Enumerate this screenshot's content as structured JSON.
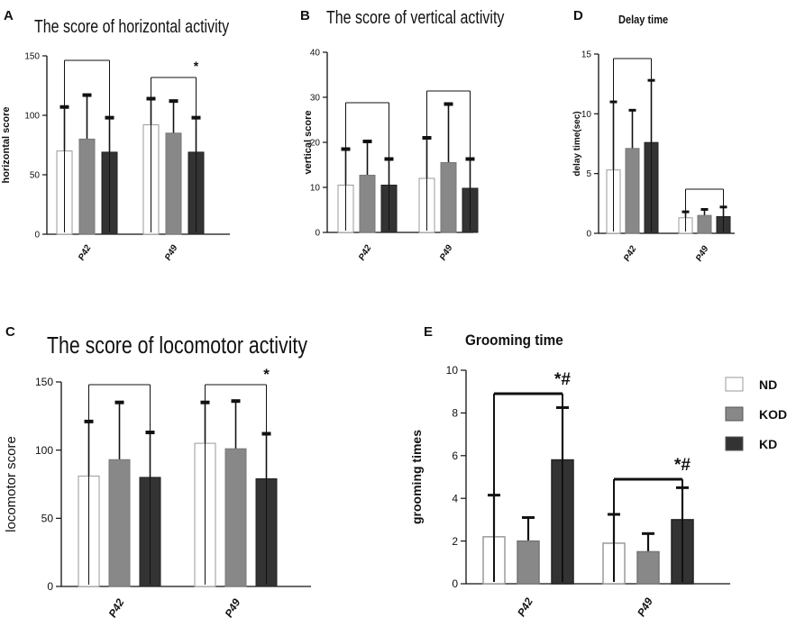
{
  "figure": {
    "legend": [
      {
        "name": "ND",
        "color": "#ffffff"
      },
      {
        "name": "KOD",
        "color": "#888888"
      },
      {
        "name": "KD",
        "color": "#333333"
      }
    ]
  },
  "chart_data": [
    {
      "panel_letter": "A",
      "type": "bar",
      "title": "The score of horizontal activity",
      "xlabel": "",
      "ylabel": "horizontal score",
      "ylim": [
        0,
        150
      ],
      "yticks": [
        "0",
        "50",
        "100",
        "150"
      ],
      "categories": [
        "P42",
        "P49"
      ],
      "series": [
        {
          "name": "ND",
          "values": [
            70,
            92
          ],
          "errors": [
            37,
            22
          ]
        },
        {
          "name": "KOD",
          "values": [
            80,
            85
          ],
          "errors": [
            37,
            27
          ]
        },
        {
          "name": "KD",
          "values": [
            69,
            69
          ],
          "errors": [
            29,
            29
          ]
        }
      ],
      "annotations": [
        "*"
      ]
    },
    {
      "panel_letter": "B",
      "type": "bar",
      "title": "The score of vertical activity",
      "xlabel": "",
      "ylabel": "vertical score",
      "ylim": [
        0,
        40
      ],
      "yticks": [
        "0",
        "10",
        "20",
        "30",
        "40"
      ],
      "categories": [
        "P42",
        "P49"
      ],
      "series": [
        {
          "name": "ND",
          "values": [
            10.5,
            12
          ],
          "errors": [
            8,
            9
          ]
        },
        {
          "name": "KOD",
          "values": [
            12.7,
            15.5
          ],
          "errors": [
            7.5,
            13
          ]
        },
        {
          "name": "KD",
          "values": [
            10.5,
            9.8
          ],
          "errors": [
            5.8,
            6.5
          ]
        }
      ],
      "annotations": []
    },
    {
      "panel_letter": "D",
      "type": "bar",
      "title": "Delay time",
      "xlabel": "",
      "ylabel": "delay time(sec)",
      "ylim": [
        0,
        15
      ],
      "yticks": [
        "0",
        "5",
        "10",
        "15"
      ],
      "categories": [
        "P42",
        "P49"
      ],
      "series": [
        {
          "name": "ND",
          "values": [
            5.3,
            1.3
          ],
          "errors": [
            5.7,
            0.5
          ]
        },
        {
          "name": "KOD",
          "values": [
            7.1,
            1.5
          ],
          "errors": [
            3.2,
            0.5
          ]
        },
        {
          "name": "KD",
          "values": [
            7.6,
            1.4
          ],
          "errors": [
            5.2,
            0.8
          ]
        }
      ],
      "annotations": []
    },
    {
      "panel_letter": "C",
      "type": "bar",
      "title": "The score of locomotor activity",
      "xlabel": "",
      "ylabel": "locomotor score",
      "ylim": [
        0,
        150
      ],
      "yticks": [
        "0",
        "50",
        "100",
        "150"
      ],
      "categories": [
        "P42",
        "P49"
      ],
      "series": [
        {
          "name": "ND",
          "values": [
            81,
            105
          ],
          "errors": [
            40,
            30
          ]
        },
        {
          "name": "KOD",
          "values": [
            93,
            101
          ],
          "errors": [
            42,
            35
          ]
        },
        {
          "name": "KD",
          "values": [
            80,
            79
          ],
          "errors": [
            33,
            33
          ]
        }
      ],
      "annotations": [
        "*"
      ]
    },
    {
      "panel_letter": "E",
      "type": "bar",
      "title": "Grooming time",
      "xlabel": "",
      "ylabel": "grooming times",
      "ylim": [
        0,
        10
      ],
      "yticks": [
        "0",
        "2",
        "4",
        "6",
        "8",
        "10"
      ],
      "categories": [
        "P42",
        "P49"
      ],
      "series": [
        {
          "name": "ND",
          "values": [
            2.2,
            1.9
          ],
          "errors": [
            1.95,
            1.35
          ]
        },
        {
          "name": "KOD",
          "values": [
            2.0,
            1.5
          ],
          "errors": [
            1.1,
            0.85
          ]
        },
        {
          "name": "KD",
          "values": [
            5.8,
            3.0
          ],
          "errors": [
            2.45,
            1.5
          ]
        }
      ],
      "annotations": [
        "*#",
        "*#"
      ]
    }
  ]
}
